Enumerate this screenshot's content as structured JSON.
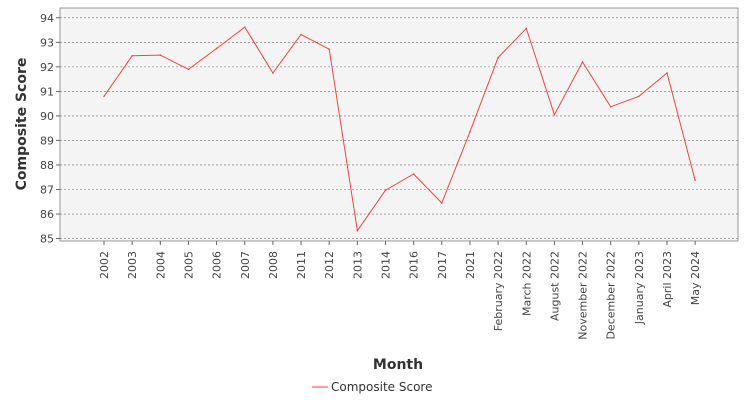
{
  "chart_data": {
    "type": "line",
    "title": "",
    "xlabel": "Month",
    "ylabel": "Composite Score",
    "ylim": [
      84.9,
      94.4
    ],
    "yticks": [
      85,
      86,
      87,
      88,
      89,
      90,
      91,
      92,
      93,
      94
    ],
    "grid": true,
    "legend_position": "bottom",
    "categories": [
      "2002",
      "2003",
      "2004",
      "2005",
      "2006",
      "2007",
      "2008",
      "2011",
      "2012",
      "2013",
      "2014",
      "2016",
      "2017",
      "2021",
      "February 2022",
      "March 2022",
      "August 2022",
      "November 2022",
      "December 2022",
      "January 2023",
      "April 2023",
      "May 2024"
    ],
    "series": [
      {
        "name": "Composite Score",
        "color": "#ef4444",
        "values": [
          90.8,
          92.45,
          92.48,
          91.9,
          92.75,
          93.62,
          91.75,
          93.32,
          92.72,
          85.32,
          86.97,
          87.63,
          86.45,
          89.35,
          92.38,
          93.57,
          90.05,
          92.2,
          90.37,
          90.8,
          91.75,
          87.38
        ]
      }
    ]
  }
}
